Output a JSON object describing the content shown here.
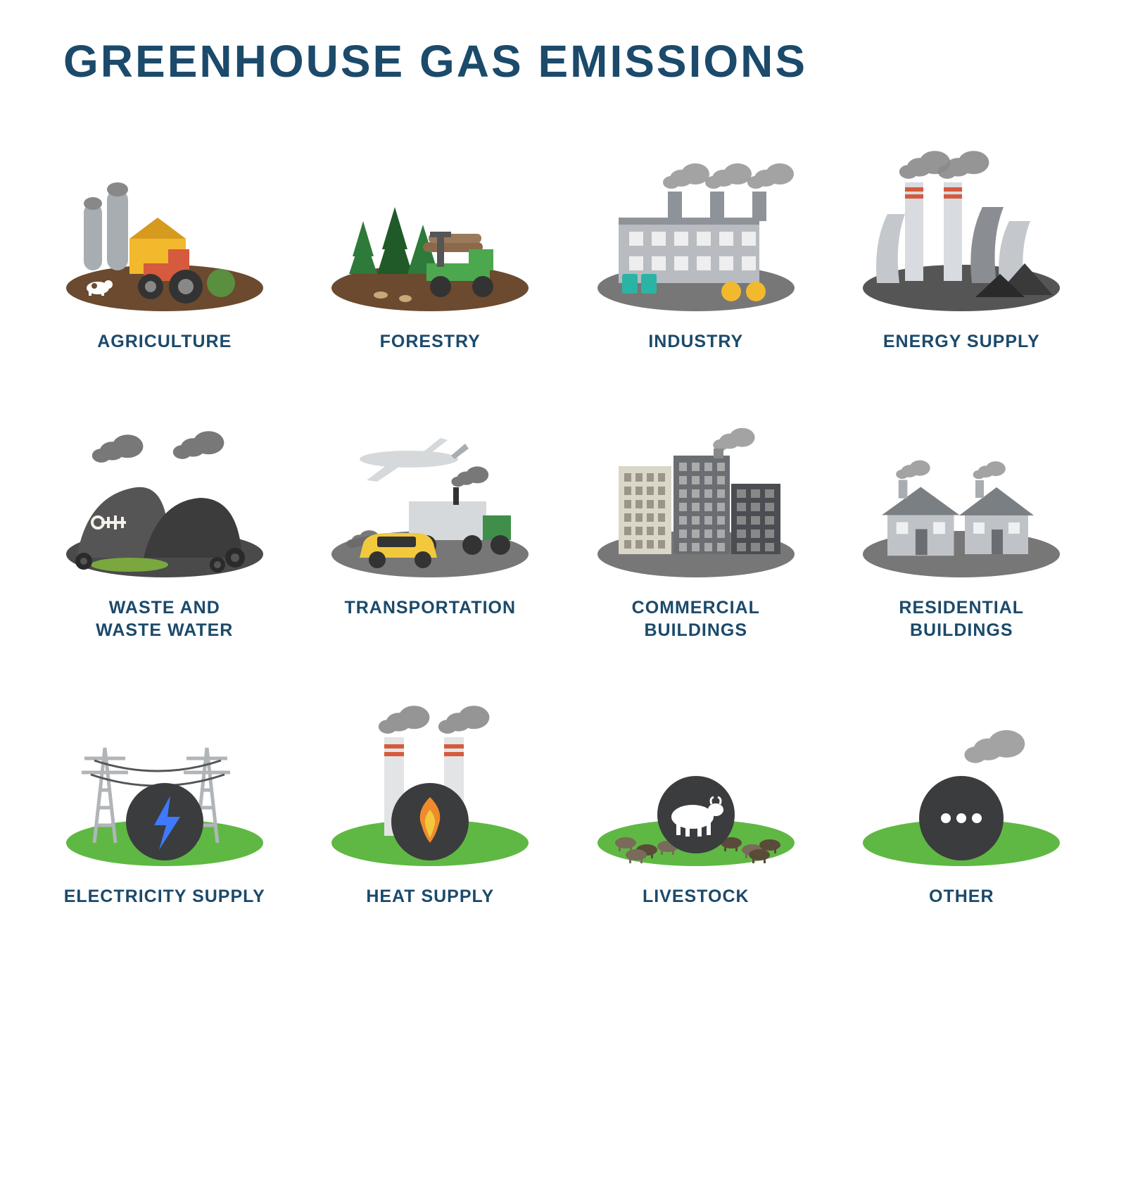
{
  "title": "GREENHOUSE GAS EMISSIONS",
  "title_color": "#1b4a6b",
  "label_color": "#1b4a6b",
  "background": "#ffffff",
  "grid": {
    "cols": 4,
    "rows": 3
  },
  "palette": {
    "ground_brown": "#6b4a2f",
    "ground_green": "#5fb843",
    "ground_grey": "#777777",
    "ground_dark": "#4a4a4a",
    "smoke_grey": "#8a8a8a",
    "smoke_light": "#bdbdbd",
    "building_grey": "#9aa0a5",
    "building_light": "#d6d9db",
    "building_dark": "#6a6e72",
    "roof_grey": "#7a7f83",
    "accent_yellow": "#f2b92d",
    "accent_orange": "#f08b2d",
    "accent_teal": "#2bb3a3",
    "accent_red": "#d65a3d",
    "accent_blue": "#3f79ff",
    "circle_dark": "#3a3c3e",
    "tree_green": "#2d7a3a",
    "wire_grey": "#555555"
  },
  "items": [
    {
      "id": "agriculture",
      "label": "AGRICULTURE",
      "icon": "agriculture",
      "ground_color": "#6b4a2f",
      "colors": {
        "barn": "#f2b92d",
        "tractor": "#d65a3d",
        "silo": "#a8adb1",
        "cow": "#6b4a2f",
        "haybale": "#5a8f3f"
      }
    },
    {
      "id": "forestry",
      "label": "FORESTRY",
      "icon": "forestry",
      "ground_color": "#6b4a2f",
      "colors": {
        "tree": "#2d7a3a",
        "tree_dark": "#1f5a28",
        "truck": "#4ba84e",
        "logs": "#8a6a4a"
      }
    },
    {
      "id": "industry",
      "label": "INDUSTRY",
      "icon": "industry",
      "ground_color": "#777777",
      "colors": {
        "building": "#b8bcc0",
        "roof": "#8e9399",
        "barrel": "#2bb3a3",
        "pipe": "#f2b92d",
        "smoke": "#9a9a9a"
      }
    },
    {
      "id": "energy",
      "label": "ENERGY SUPPLY",
      "icon": "energy",
      "ground_color": "#555555",
      "colors": {
        "tower": "#c4c8cc",
        "tower_dark": "#8a8e93",
        "stack": "#d8dbdf",
        "stripe": "#d65a3d",
        "smoke": "#8a8a8a",
        "coal": "#3a3a3a"
      }
    },
    {
      "id": "waste",
      "label": "WASTE AND\nWASTE WATER",
      "icon": "waste",
      "ground_color": "#4a4a4a",
      "colors": {
        "pile": "#555555",
        "pile_dark": "#3c3c3c",
        "smoke": "#6a6a6a",
        "sludge": "#7aa83f",
        "tire": "#2a2a2a",
        "bone": "#f4f1e8"
      }
    },
    {
      "id": "transportation",
      "label": "TRANSPORTATION",
      "icon": "transportation",
      "ground_color": "#777777",
      "colors": {
        "plane": "#d6d9db",
        "plane_dark": "#a8adb1",
        "truck": "#3f8f4a",
        "truck_box": "#d6d9db",
        "car": "#f2c93d",
        "smoke": "#6a6a6a"
      }
    },
    {
      "id": "commercial",
      "label": "COMMERCIAL\nBUILDINGS",
      "icon": "commercial",
      "ground_color": "#777777",
      "colors": {
        "b1": "#dad6c8",
        "b2": "#6a6e72",
        "b3": "#4a4e52",
        "window": "#9a9588",
        "smoke": "#9a9a9a"
      }
    },
    {
      "id": "residential",
      "label": "RESIDENTIAL\nBUILDINGS",
      "icon": "residential",
      "ground_color": "#777777",
      "colors": {
        "wall": "#bfc3c7",
        "roof": "#7a7f83",
        "chimney": "#a8adb1",
        "door": "#6a6e72",
        "window": "#eef0f1",
        "smoke": "#9a9a9a"
      }
    },
    {
      "id": "electricity",
      "label": "ELECTRICITY SUPPLY",
      "icon": "electricity",
      "ground_color": "#5fb843",
      "colors": {
        "pylon": "#b0b5ba",
        "wire": "#555555",
        "circle": "#3a3c3e",
        "bolt": "#3f79ff"
      }
    },
    {
      "id": "heat",
      "label": "HEAT SUPPLY",
      "icon": "heat",
      "ground_color": "#5fb843",
      "colors": {
        "stack": "#e2e4e6",
        "stripe": "#d65a3d",
        "smoke": "#8a8a8a",
        "circle": "#3a3c3e",
        "flame1": "#f08b2d",
        "flame2": "#f2c93d"
      }
    },
    {
      "id": "livestock",
      "label": "LIVESTOCK",
      "icon": "livestock",
      "ground_color": "#5fb843",
      "colors": {
        "cow_dark": "#5a4a3a",
        "cow_mid": "#7a6a5a",
        "circle": "#3a3c3e",
        "cow_icon": "#ffffff"
      }
    },
    {
      "id": "other",
      "label": "OTHER",
      "icon": "other",
      "ground_color": "#5fb843",
      "colors": {
        "circle": "#3a3c3e",
        "dot": "#ffffff",
        "smoke": "#9a9a9a"
      }
    }
  ]
}
